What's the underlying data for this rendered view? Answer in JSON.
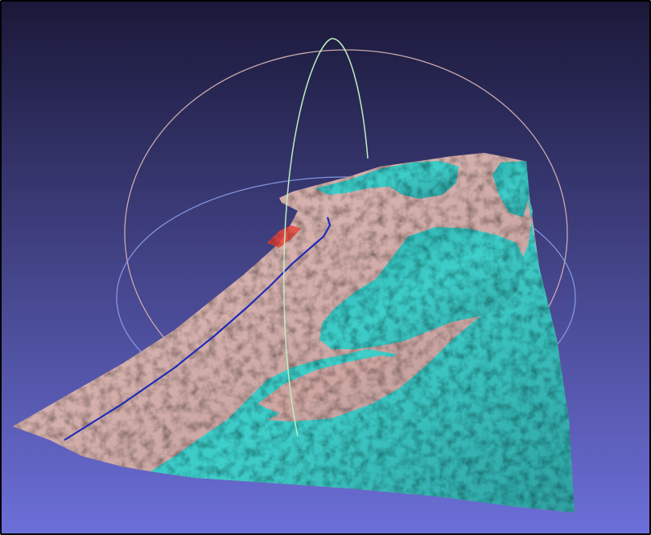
{
  "viewer": {
    "background_top": "#1a1838",
    "background_bottom": "#6c6fd8",
    "mesh_land_color": "#cfa6a2",
    "mesh_water_color": "#3cc7c4",
    "edge_highlight_color": "#e6463a",
    "trackball_ring_x_color": "#c9a9ad",
    "trackball_ring_y_color": "#bfeec0",
    "trackball_ring_z_color": "#8aa0e8",
    "contour_line_color": "#1e2bb8"
  },
  "icons": {
    "trackball": "trackball-rings-icon",
    "mesh": "terrain-mesh-icon"
  }
}
